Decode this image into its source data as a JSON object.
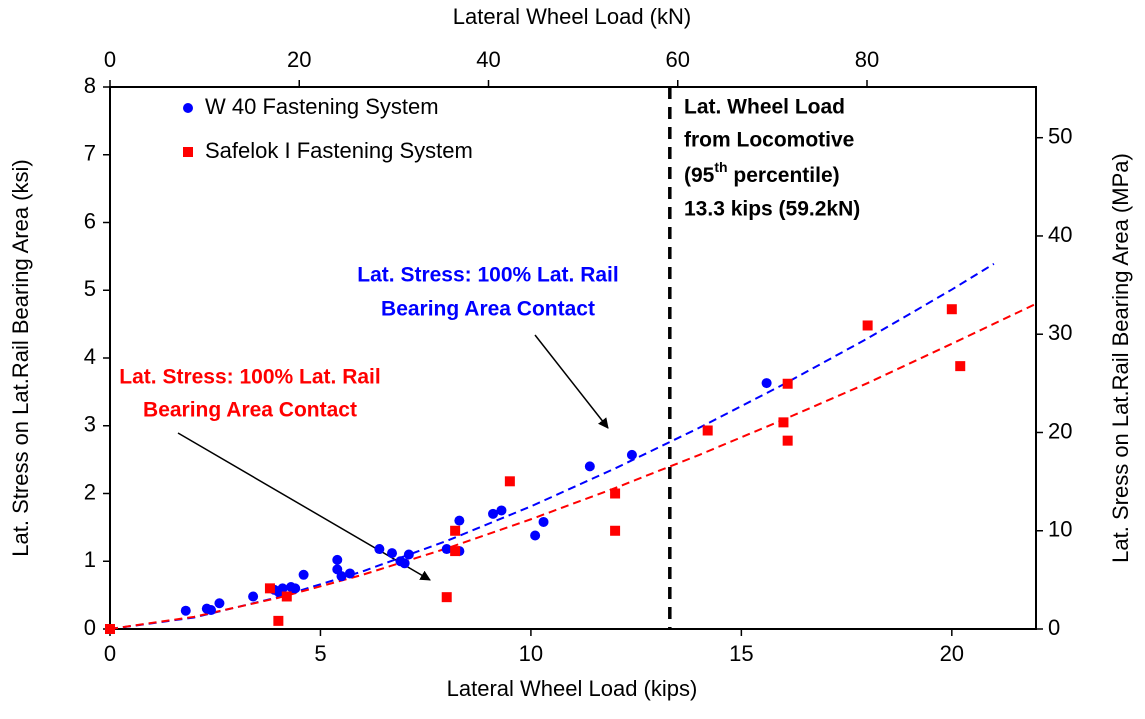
{
  "chart_data": {
    "type": "scatter",
    "xlabel": "Lateral Wheel Load (kips)",
    "x2label": "Lateral Wheel Load (kN)",
    "ylabel": "Lat. Stress on Lat.Rail Bearing Area (ksi)",
    "y2label": "Lat. Sress on Lat.Rail Bearing Area (MPa)",
    "xlim": [
      0,
      22
    ],
    "xticks": [
      0,
      5,
      10,
      15,
      20
    ],
    "x2lim": [
      0,
      97.86
    ],
    "x2ticks": [
      0,
      20,
      40,
      60,
      80
    ],
    "ylim": [
      0,
      8
    ],
    "yticks": [
      0,
      1,
      2,
      3,
      4,
      5,
      6,
      7,
      8
    ],
    "y2lim": [
      0,
      55.16
    ],
    "y2ticks": [
      0,
      10,
      20,
      30,
      40,
      50
    ],
    "legend": "upper left",
    "series": [
      {
        "name": "W 40 Fastening System",
        "color": "#0000ff",
        "marker": "circle",
        "x": [
          0,
          1.8,
          2.3,
          2.4,
          2.6,
          3.4,
          3.9,
          4.0,
          4.1,
          4.3,
          4.4,
          4.6,
          5.4,
          5.4,
          5.5,
          5.7,
          6.4,
          6.7,
          6.9,
          7.0,
          7.1,
          8.0,
          8.3,
          8.3,
          9.1,
          9.3,
          10.1,
          10.3,
          11.4,
          12.4,
          15.6
        ],
        "values": [
          0,
          0.27,
          0.3,
          0.28,
          0.38,
          0.48,
          0.58,
          0.55,
          0.6,
          0.62,
          0.6,
          0.8,
          1.02,
          0.88,
          0.78,
          0.82,
          1.18,
          1.12,
          1.0,
          0.97,
          1.1,
          1.18,
          1.6,
          1.15,
          1.7,
          1.75,
          1.38,
          1.58,
          2.4,
          2.57,
          3.63
        ]
      },
      {
        "name": "Safelok I Fastening System",
        "color": "#ff0000",
        "marker": "square",
        "x": [
          0,
          3.8,
          4.0,
          4.2,
          8.0,
          8.2,
          8.2,
          9.5,
          12.0,
          12.0,
          14.2,
          16.0,
          16.1,
          16.1,
          18.0,
          20.0,
          20.2
        ],
        "values": [
          0,
          0.6,
          0.12,
          0.48,
          0.47,
          1.45,
          1.15,
          2.18,
          1.45,
          2.0,
          2.93,
          3.05,
          3.62,
          2.78,
          4.48,
          4.72,
          3.88
        ]
      }
    ],
    "trend_lines": [
      {
        "color": "#0000ff",
        "x": [
          0,
          2,
          4,
          6,
          8,
          10,
          12,
          14,
          16,
          18,
          20,
          21
        ],
        "values": [
          0,
          0.17,
          0.47,
          0.85,
          1.3,
          1.81,
          2.37,
          2.97,
          3.61,
          4.29,
          5.01,
          5.39
        ]
      },
      {
        "color": "#ff0000",
        "x": [
          0,
          2,
          4,
          6,
          8,
          10,
          12,
          14,
          16,
          18,
          20,
          22
        ],
        "values": [
          0,
          0.18,
          0.46,
          0.8,
          1.19,
          1.62,
          2.08,
          2.57,
          3.09,
          3.63,
          4.21,
          4.8
        ]
      }
    ],
    "vline": 13.3,
    "annotations": {
      "locomotive": {
        "line1": "Lat. Wheel Load",
        "line2": "from Locomotive",
        "line3a": "(95",
        "line3sup": "th",
        "line3b": " percentile)",
        "line4": "13.3 kips (59.2kN)"
      },
      "blue_label": {
        "line1": "Lat. Stress: 100% Lat. Rail",
        "line2": "Bearing Area Contact"
      },
      "red_label": {
        "line1": "Lat. Stress: 100% Lat. Rail",
        "line2": "Bearing Area Contact"
      }
    }
  }
}
